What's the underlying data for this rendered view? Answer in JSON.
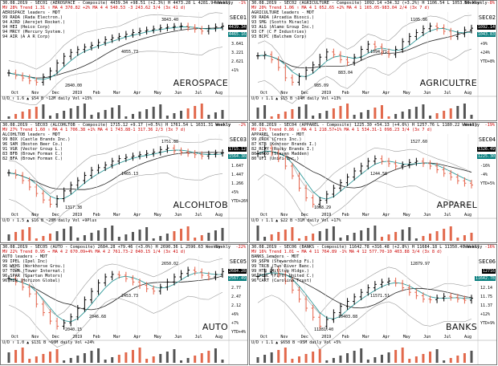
{
  "panels": [
    {
      "header": [
        "30.08.2019 - SEC01 (AEROSPACE - Composite)  4439.34 +98.51 (+2.3%) H 4473.28 L 4281.94   Weekly",
        "MV 28% Trend 1.31 ⇑ MA 4 370.82 +2%  MA 4 4 540.53 -3 243.62 3/4 (3x 41 d)",
        "AEROSPACE leaders - MDT"
      ],
      "timeframe": "Weekly",
      "pct": "-1%",
      "leaders": [
        "99 RADA (Rada Electron.)",
        "94 AJRD (Aerojet Rocket.)",
        "94 HEI (Heico Corp)",
        "94 MRCY (Mercury System.)",
        "94 AIR (A A R Corp)"
      ],
      "code": "SEC01",
      "sector": "AEROSPACE",
      "annotations": [
        "3843.40",
        "4055.73",
        "2840.00"
      ],
      "price_boxes": [
        "4439.34",
        "4465.16"
      ],
      "volume": "U/D ↑ 1.6  ▲ $54 B  ~12M daily  Vol +15%",
      "right_labels": [
        "3.641",
        "3.221",
        "2.621",
        "+1%"
      ],
      "months": [
        "Oct",
        "Nov",
        "Dec",
        "2019",
        "Feb",
        "Mar",
        "Apr",
        "May",
        "Jun",
        "Jul",
        "Aug"
      ]
    },
    {
      "header": [
        "30.08.2019 - SEC02 (AGRICULTURE - Composite)  1092.14 +34.32 (+3.2%) H 1106.54 L 1053.50   Weekly",
        "MV 20% Trend 1.06 ⇑ MA 4 1 052.65 +2%  MA 4 1 165.05-983.04 2/4 (3x 7 d)",
        "AGRICULTURE leaders - MDT"
      ],
      "timeframe": "Weekly",
      "pct": "-8%",
      "leaders": [
        "99 RADA (Arcadia Biosci.)",
        "93 SMG (Scotts Miracle)",
        "93 ALG (Alamo Group Inc.)",
        "93 CF (C F Industries)",
        "93 BCPC (Balchem Corp)"
      ],
      "code": "SEC02",
      "sector": "AGRICULTRE",
      "annotations": [
        "1105.86",
        "1094.71",
        "985.09",
        "883.04"
      ],
      "price_boxes": [
        "1092.14",
        "1043.83"
      ],
      "volume": "U/D ↑ 1.1  ▲ $15 B  ~14M daily  Vol +13%",
      "right_labels": [
        "+9%",
        "+24%",
        "YTD+8%"
      ],
      "months": [
        "Oct",
        "Nov",
        "Dec",
        "2019",
        "Feb",
        "Mar",
        "Apr",
        "May",
        "Jun",
        "Jul",
        "Aug"
      ]
    },
    {
      "header": [
        "30.08.2019 - SEC03 (ALCOHLTOB - Composite)  1715.12 +9.17 (+0.5%) H 1761.54 L 1631.31   Weekly",
        "MV 27% Trend 1.60 ⇑ MA 4 1 706.38 +1%  MA 4 1 743.88-1 317.36 2/3 (3x 7 d)",
        "ALCOHLTOB leaders - MDT"
      ],
      "timeframe": "Weekly",
      "pct": "-2%",
      "leaders": [
        "99 BOX (Castle Brands Inc.)",
        "96 SAM (Boston Beer Co.)",
        "91 VGR (Vector Group L.)",
        "83 BFB (Brown Forman C.)",
        "82 BFA (Brown Forman C.)"
      ],
      "code": "SEC03",
      "sector": "ALCOHLTOB",
      "annotations": [
        "1751.88",
        "1465.13",
        "1317.38"
      ],
      "price_boxes": [
        "1715.12",
        "1564.38"
      ],
      "volume": "U/D ↑ 1.5  ▲ $16 B  ~28M daily  Vol +9Plus",
      "right_labels": [
        "1.647",
        "1.447",
        "1.266",
        "+5%",
        "YTD+26%"
      ],
      "months": [
        "Oct",
        "Nov",
        "Dec",
        "2019",
        "Feb",
        "Mar",
        "Apr",
        "May",
        "Jun",
        "Jul",
        "Aug"
      ]
    },
    {
      "header": [
        "30.08.2019 - SEC04 (APPAREL - Composite)  1225.30 +54.13 (+4.6%) H 1257.76 L 1180.22   Weekly",
        "MV 21% Trend 0.86 ⇓ MA 4 1 218.57+1%  MA 4 1 534.31-1 098.23 3/4 (3x 7 d)",
        "APPAREL leaders - MDT"
      ],
      "timeframe": "Weekly",
      "pct": "-19%",
      "leaders": [
        "99 CROX (Crocs Inc.)",
        "87 KTB (Kontoor Brands I.)",
        "82 RCKY (Rocky Brands I.)",
        "80 SHOO (Steven Madden)",
        "80 UFI (Unifi Inc.)"
      ],
      "code": "SEC04",
      "sector": "APPAREL",
      "annotations": [
        "1527.60",
        "1244.58",
        "1068.29"
      ],
      "price_boxes": [
        "1326.49",
        "1225.30"
      ],
      "volume": "U/D ↑ 1.1  ▲ $22 B  ~31M daily  Vol +17%",
      "right_labels": [
        "-16%",
        "-4%",
        "YTD+5%"
      ],
      "months": [
        "Oct",
        "Nov",
        "Dec",
        "2019",
        "Feb",
        "Mar",
        "Apr",
        "May",
        "Jun",
        "Jul",
        "Aug"
      ]
    },
    {
      "header": [
        "30.08.2019 - SEC05 (AUTO - Composite)  2684.28 +79.46 (+3.0%) H 2690.36 L 2596.63   Weekly",
        "MV 22% Trend 0.95 ⇒ MA 4 2 670.09+4%  MA 4 2 761.73-2 040.15 1/4 (3x 41 d)",
        "AUTO leaders - MDT"
      ],
      "timeframe": "Weekly",
      "pct": "-22%",
      "leaders": [
        "99 IPEL (Ipel Inc)",
        "96 WKHS (Workhorse Grou.)",
        "97 TOWR (Tower Internat.)",
        "96 SPAR (Spartan Motors)",
        "96 HZN (Horizon Global)"
      ],
      "code": "SEC05",
      "sector": "AUTO",
      "annotations": [
        "2650.02",
        "2453.73",
        "2040.15",
        "2046.68"
      ],
      "price_boxes": [
        "2684.28",
        "2567.49"
      ],
      "volume": "U/D ↑ 1.0  ▲ $131 B  ~60M daily  Vol +24%",
      "right_labels": [
        "2.77",
        "2.47",
        "2.12",
        "+6%",
        "+7%",
        "YTD+4%"
      ],
      "months": [
        "Oct",
        "Nov",
        "Dec",
        "2019",
        "Feb",
        "Mar",
        "Apr",
        "May",
        "Jun",
        "Jul",
        "Aug"
      ]
    },
    {
      "header": [
        "30.08.2019 - SEC06 (BANKS - Composite)  11642.78 +316.48 (+2.8%) H 11684.18 L 11350.40   Weekly",
        "MV 16% Trend 1.01 ⇒ MA 4 11 764.89 -1%  MA 4 12 577.70-10 403.88 3/4 (3x 8 d)",
        "BANKS leaders - MDT"
      ],
      "timeframe": "Weekly",
      "pct": "-16%",
      "leaders": [
        "99 SSPN (Stewardship Fi.)",
        "99 TRCB (Two River Banc.)",
        "99 HTH (Hilltop Hldgs.)",
        "96 FUNC (First United C.)",
        "96 CART (Carolina Trust)"
      ],
      "code": "SEC06",
      "sector": "BANKS",
      "annotations": [
        "12879.97",
        "11571.51",
        "11281.40",
        "10403.88"
      ],
      "price_boxes": [
        "12716",
        "11642.78"
      ],
      "volume": "U/D ↑ 1.1  ▲ $658 B  ~95M daily  Vol +5%",
      "right_labels": [
        "12.14",
        "11.75",
        "11.37",
        "+12%",
        "YTD+9%"
      ],
      "months": [
        "Oct",
        "Nov",
        "Dec",
        "2019",
        "Feb",
        "Mar",
        "Apr",
        "May",
        "Jun",
        "Jul",
        "Aug"
      ]
    }
  ],
  "colors": {
    "up": "#000000",
    "down": "#e6634a",
    "ma_fast": "#1a8f8f",
    "ma_slow": "#222222",
    "band": "#9a9a9a",
    "vol_up": "#555555",
    "vol_down": "#e2694c",
    "header_red": "#cc0000",
    "price_box_up": "#000000",
    "price_box_down": "#0a7f7f"
  },
  "chart_data": [
    {
      "type": "line",
      "title": "AEROSPACE",
      "series": [
        {
          "name": "SEC01",
          "values": [
            3120,
            3040,
            2980,
            2900,
            2860,
            3010,
            3180,
            3400,
            3590,
            3700,
            3780,
            3850,
            3900,
            3980,
            4060,
            4110,
            4150,
            4210,
            4260,
            4300,
            4330,
            4360,
            4390,
            4410,
            4430,
            4440,
            4400,
            4350,
            4300,
            4380,
            4420,
            4439
          ]
        }
      ]
    },
    {
      "type": "line",
      "title": "AGRICULTRE",
      "series": [
        {
          "name": "SEC02",
          "values": [
            985,
            990,
            970,
            940,
            900,
            883,
            905,
            930,
            950,
            980,
            1000,
            990,
            970,
            960,
            980,
            1010,
            1030,
            1020,
            1000,
            990,
            1010,
            1040,
            1060,
            1075,
            1090,
            1100,
            1094,
            1080,
            1060,
            1070,
            1085,
            1092
          ]
        }
      ]
    },
    {
      "type": "line",
      "title": "ALCOHLTOB",
      "series": [
        {
          "name": "SEC03",
          "values": [
            1560,
            1540,
            1500,
            1450,
            1400,
            1350,
            1317,
            1360,
            1420,
            1465,
            1500,
            1540,
            1580,
            1600,
            1620,
            1650,
            1670,
            1680,
            1690,
            1700,
            1710,
            1720,
            1740,
            1751,
            1730,
            1720,
            1710,
            1700,
            1690,
            1705,
            1712,
            1715
          ]
        }
      ]
    },
    {
      "type": "line",
      "title": "APPAREL",
      "series": [
        {
          "name": "SEC04",
          "values": [
            1480,
            1527,
            1490,
            1440,
            1380,
            1300,
            1200,
            1120,
            1068,
            1100,
            1150,
            1200,
            1244,
            1290,
            1340,
            1380,
            1420,
            1440,
            1420,
            1400,
            1380,
            1390,
            1410,
            1420,
            1400,
            1380,
            1350,
            1320,
            1290,
            1260,
            1240,
            1225
          ]
        }
      ]
    },
    {
      "type": "line",
      "title": "AUTO",
      "series": [
        {
          "name": "SEC05",
          "values": [
            2600,
            2560,
            2500,
            2420,
            2300,
            2200,
            2100,
            2040,
            2080,
            2150,
            2250,
            2350,
            2450,
            2550,
            2620,
            2650,
            2640,
            2600,
            2560,
            2520,
            2480,
            2453,
            2500,
            2560,
            2620,
            2660,
            2700,
            2680,
            2640,
            2620,
            2650,
            2684
          ]
        }
      ]
    },
    {
      "type": "line",
      "title": "BANKS",
      "series": [
        {
          "name": "SEC06",
          "values": [
            12600,
            12800,
            12880,
            12700,
            12400,
            12000,
            11600,
            11200,
            10800,
            10404,
            10700,
            11000,
            11281,
            11500,
            11700,
            11900,
            12100,
            12250,
            12350,
            12400,
            12300,
            12100,
            11900,
            11750,
            11600,
            11571,
            11650,
            11720,
            11680,
            11600,
            11550,
            11643
          ]
        }
      ]
    }
  ]
}
